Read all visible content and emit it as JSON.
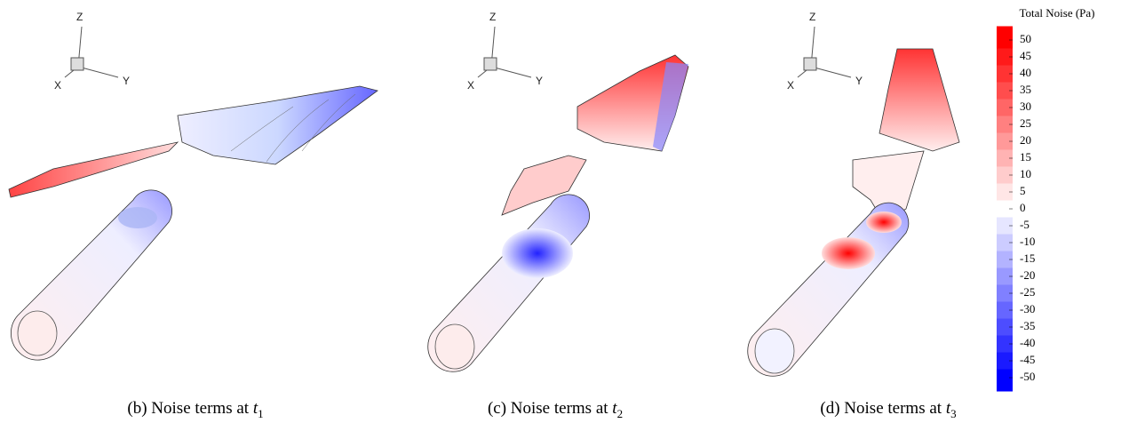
{
  "figure": {
    "panels": [
      {
        "caption": {
          "label": "(b) Noise terms at ",
          "var": "t",
          "sub": "1"
        },
        "axes": {
          "z": "Z",
          "y": "Y",
          "x": "X"
        }
      },
      {
        "caption": {
          "label": "(c) Noise terms at ",
          "var": "t",
          "sub": "2"
        },
        "axes": {
          "z": "Z",
          "y": "Y",
          "x": "X"
        }
      },
      {
        "caption": {
          "label": "(d) Noise terms at ",
          "var": "t",
          "sub": "3"
        },
        "axes": {
          "z": "Z",
          "y": "Y",
          "x": "X"
        }
      }
    ],
    "colorbar": {
      "title": "Total Noise (Pa)",
      "ticks": [
        50,
        45,
        40,
        35,
        30,
        25,
        20,
        15,
        10,
        5,
        0,
        -5,
        -10,
        -15,
        -20,
        -25,
        -30,
        -35,
        -40,
        -45,
        -50
      ],
      "colors": {
        "high": "#ff0000",
        "mid": "#ffffff",
        "low": "#0000ff"
      }
    }
  }
}
